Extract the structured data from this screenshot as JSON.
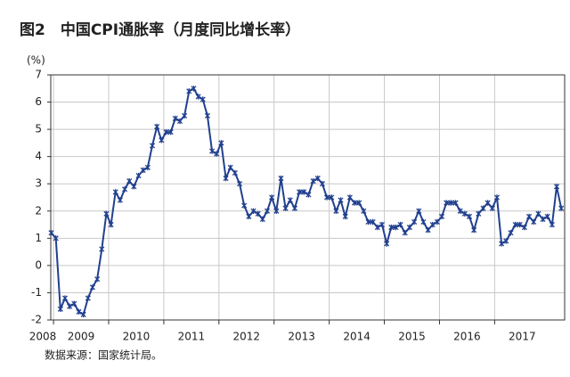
{
  "chart_data": {
    "type": "line",
    "title": "图2　中国CPI通胀率（月度同比增长率）",
    "y_unit": "(%)",
    "source": "数据来源：国家统计局。",
    "color": "#21408f",
    "grid": true,
    "xlim": [
      2008.95,
      2018.27
    ],
    "xticks": [
      2008,
      2009,
      2010,
      2011,
      2012,
      2013,
      2014,
      2015,
      2016,
      2017
    ],
    "ylim": [
      -2,
      7
    ],
    "yticks": [
      -2,
      -1,
      0,
      1,
      2,
      3,
      4,
      5,
      6,
      7
    ],
    "x": [
      2008.958,
      2009.042,
      2009.125,
      2009.208,
      2009.292,
      2009.375,
      2009.458,
      2009.542,
      2009.625,
      2009.708,
      2009.792,
      2009.875,
      2009.958,
      2010.042,
      2010.125,
      2010.208,
      2010.292,
      2010.375,
      2010.458,
      2010.542,
      2010.625,
      2010.708,
      2010.792,
      2010.875,
      2010.958,
      2011.042,
      2011.125,
      2011.208,
      2011.292,
      2011.375,
      2011.458,
      2011.542,
      2011.625,
      2011.708,
      2011.792,
      2011.875,
      2011.958,
      2012.042,
      2012.125,
      2012.208,
      2012.292,
      2012.375,
      2012.458,
      2012.542,
      2012.625,
      2012.708,
      2012.792,
      2012.875,
      2012.958,
      2013.042,
      2013.125,
      2013.208,
      2013.292,
      2013.375,
      2013.458,
      2013.542,
      2013.625,
      2013.708,
      2013.792,
      2013.875,
      2013.958,
      2014.042,
      2014.125,
      2014.208,
      2014.292,
      2014.375,
      2014.458,
      2014.542,
      2014.625,
      2014.708,
      2014.792,
      2014.875,
      2014.958,
      2015.042,
      2015.125,
      2015.208,
      2015.292,
      2015.375,
      2015.458,
      2015.542,
      2015.625,
      2015.708,
      2015.792,
      2015.875,
      2015.958,
      2016.042,
      2016.125,
      2016.208,
      2016.292,
      2016.375,
      2016.458,
      2016.542,
      2016.625,
      2016.708,
      2016.792,
      2016.875,
      2016.958,
      2017.042,
      2017.125,
      2017.208,
      2017.292,
      2017.375,
      2017.458,
      2017.542,
      2017.625,
      2017.708,
      2017.792,
      2017.875,
      2017.958,
      2018.042,
      2018.125,
      2018.208
    ],
    "values": [
      1.2,
      1.0,
      -1.6,
      -1.2,
      -1.5,
      -1.4,
      -1.7,
      -1.8,
      -1.2,
      -0.8,
      -0.5,
      0.6,
      1.9,
      1.5,
      2.7,
      2.4,
      2.8,
      3.1,
      2.9,
      3.3,
      3.5,
      3.6,
      4.4,
      5.1,
      4.6,
      4.9,
      4.9,
      5.4,
      5.3,
      5.5,
      6.4,
      6.5,
      6.2,
      6.1,
      5.5,
      4.2,
      4.1,
      4.5,
      3.2,
      3.6,
      3.4,
      3.0,
      2.2,
      1.8,
      2.0,
      1.9,
      1.7,
      2.0,
      2.5,
      2.0,
      3.2,
      2.1,
      2.4,
      2.1,
      2.7,
      2.7,
      2.6,
      3.1,
      3.2,
      3.0,
      2.5,
      2.5,
      2.0,
      2.4,
      1.8,
      2.5,
      2.3,
      2.3,
      2.0,
      1.6,
      1.6,
      1.4,
      1.5,
      0.8,
      1.4,
      1.4,
      1.5,
      1.2,
      1.4,
      1.6,
      2.0,
      1.6,
      1.3,
      1.5,
      1.6,
      1.8,
      2.3,
      2.3,
      2.3,
      2.0,
      1.9,
      1.8,
      1.3,
      1.9,
      2.1,
      2.3,
      2.1,
      2.5,
      0.8,
      0.9,
      1.2,
      1.5,
      1.5,
      1.4,
      1.8,
      1.6,
      1.9,
      1.7,
      1.8,
      1.5,
      2.9,
      2.1
    ]
  }
}
